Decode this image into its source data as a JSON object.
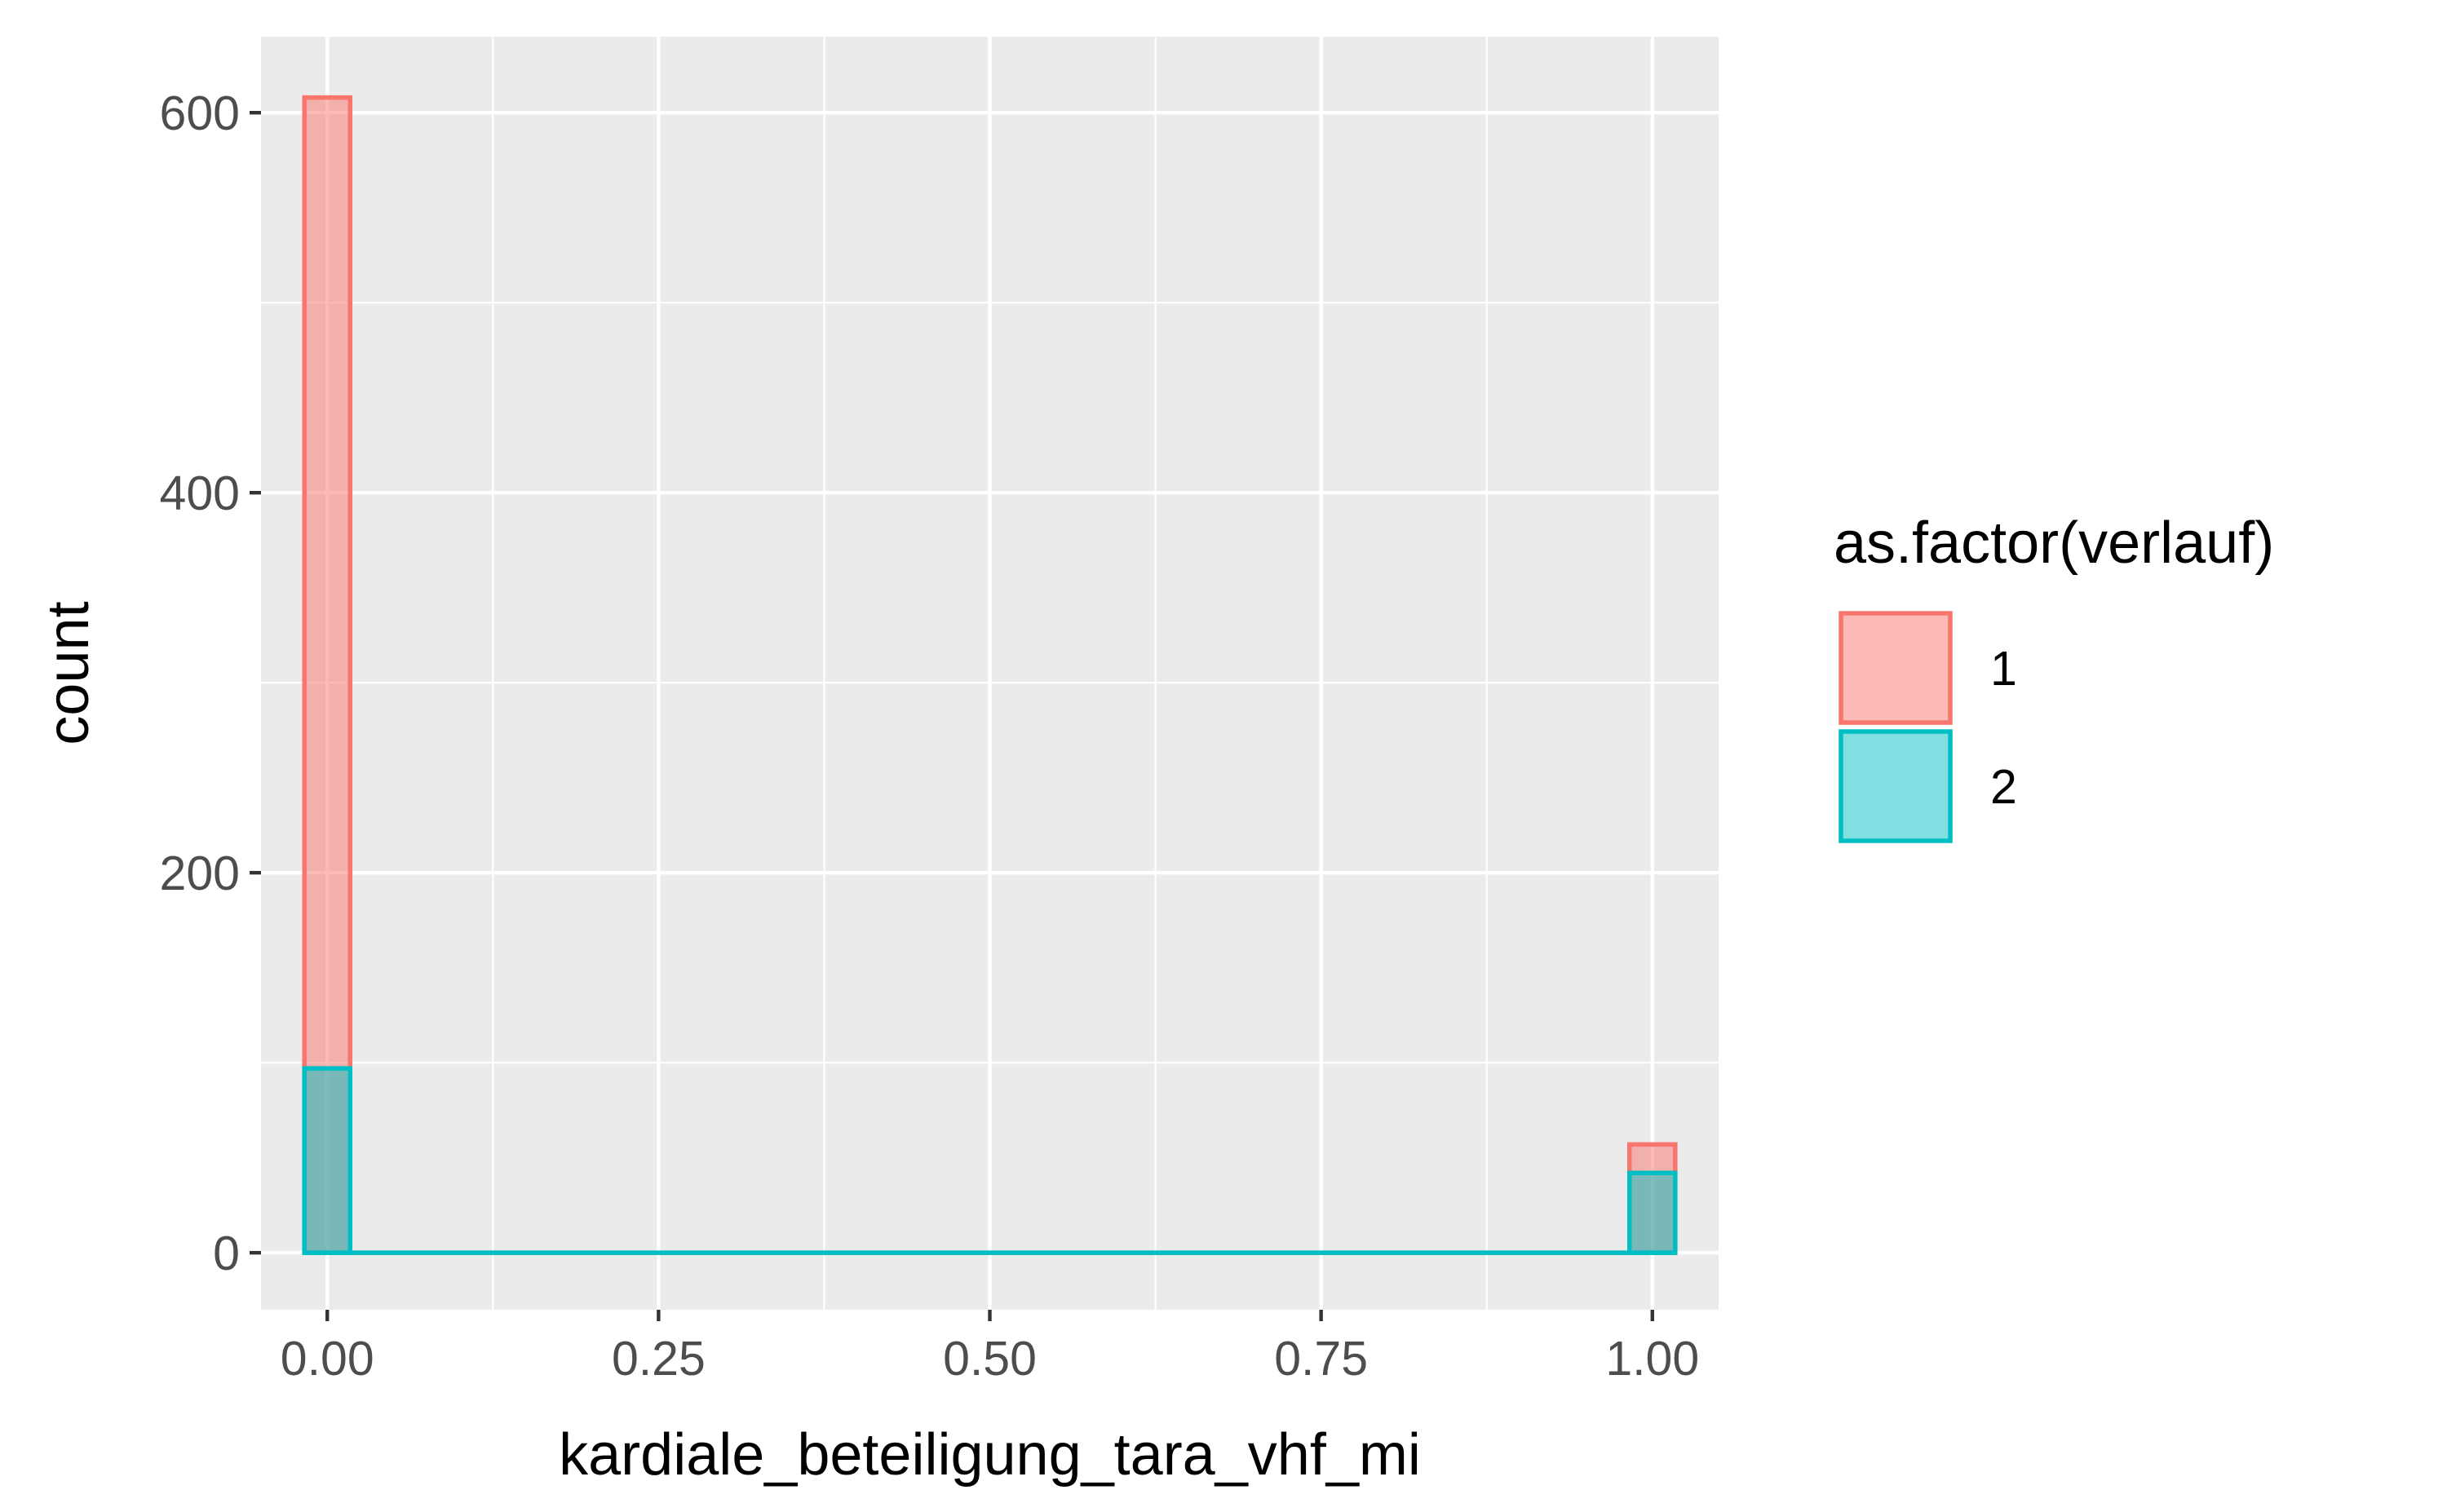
{
  "chart_data": {
    "type": "bar",
    "subtype": "histogram",
    "title": "",
    "xlabel": "kardiale_beteiligung_tara_vhf_mi",
    "ylabel": "count",
    "xlim": [
      -0.05,
      1.05
    ],
    "ylim": [
      -30,
      640
    ],
    "x_ticks": [
      0,
      0.25,
      0.5,
      0.75,
      1
    ],
    "x_tick_labels": [
      "0.00",
      "0.25",
      "0.50",
      "0.75",
      "1.00"
    ],
    "y_ticks": [
      0,
      200,
      400,
      600
    ],
    "y_tick_labels": [
      "0",
      "200",
      "400",
      "600"
    ],
    "bin_width": 0.0345,
    "position": "identity",
    "grid": true,
    "legend": {
      "title": "as.factor(verlauf)",
      "placement": "right"
    },
    "series": [
      {
        "name": "1",
        "color": "#F8766D",
        "fill": "#F8766D",
        "fill_opacity": 0.5,
        "bins": [
          {
            "x": 0.0,
            "count": 608
          },
          {
            "x": 1.0,
            "count": 57
          }
        ]
      },
      {
        "name": "2",
        "color": "#00BFC4",
        "fill": "#00BFC4",
        "fill_opacity": 0.5,
        "bins": [
          {
            "x": 0.0,
            "count": 97
          },
          {
            "x": 1.0,
            "count": 42
          }
        ]
      }
    ]
  }
}
